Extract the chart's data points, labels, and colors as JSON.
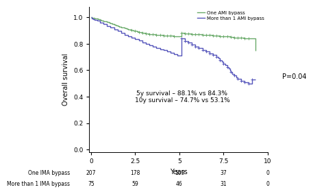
{
  "title": "",
  "ylabel": "Overall survival",
  "xlabel": "Years",
  "xlim": [
    -0.1,
    10
  ],
  "ylim": [
    -0.02,
    1.08
  ],
  "yticks": [
    0.0,
    0.2,
    0.4,
    0.6,
    0.8,
    1.0
  ],
  "xticks": [
    0,
    2.5,
    5,
    7.5,
    10
  ],
  "p_value": "P=0.04",
  "annotation": "5y survival – 88.1% vs 84.3%\n10y survival – 74.7% vs 53.1%",
  "legend_labels": [
    "One AMI bypass",
    "More than 1 AMI bypass"
  ],
  "color_one": "#6aaa6a",
  "color_more": "#5555bb",
  "at_risk_labels": [
    "One IMA bypass",
    "More than 1 IMA bypass"
  ],
  "at_risk_times": [
    0,
    2.5,
    5,
    7.5,
    10
  ],
  "at_risk_one": [
    207,
    178,
    109,
    37,
    0
  ],
  "at_risk_more": [
    75,
    59,
    46,
    31,
    0
  ],
  "one_t": [
    0.0,
    0.05,
    0.1,
    0.2,
    0.3,
    0.4,
    0.5,
    0.6,
    0.7,
    0.8,
    0.9,
    1.0,
    1.1,
    1.2,
    1.3,
    1.4,
    1.5,
    1.6,
    1.7,
    1.8,
    1.9,
    2.0,
    2.1,
    2.2,
    2.3,
    2.4,
    2.5,
    2.6,
    2.7,
    2.8,
    2.9,
    3.0,
    3.1,
    3.3,
    3.5,
    3.7,
    3.9,
    4.1,
    4.3,
    4.5,
    4.7,
    4.9,
    5.1,
    5.3,
    5.5,
    5.7,
    5.9,
    6.1,
    6.3,
    6.5,
    6.7,
    6.9,
    7.1,
    7.3,
    7.5,
    7.7,
    7.9,
    8.0,
    8.1,
    8.3,
    8.5,
    8.7,
    8.9,
    9.1,
    9.3
  ],
  "one_s": [
    1.0,
    0.998,
    0.996,
    0.993,
    0.99,
    0.988,
    0.982,
    0.977,
    0.972,
    0.968,
    0.963,
    0.958,
    0.953,
    0.948,
    0.943,
    0.938,
    0.934,
    0.93,
    0.926,
    0.922,
    0.918,
    0.914,
    0.91,
    0.906,
    0.902,
    0.898,
    0.895,
    0.892,
    0.889,
    0.886,
    0.883,
    0.88,
    0.877,
    0.874,
    0.871,
    0.868,
    0.865,
    0.863,
    0.861,
    0.859,
    0.857,
    0.855,
    0.88,
    0.878,
    0.876,
    0.874,
    0.872,
    0.87,
    0.868,
    0.866,
    0.864,
    0.862,
    0.86,
    0.858,
    0.856,
    0.854,
    0.852,
    0.85,
    0.848,
    0.846,
    0.844,
    0.842,
    0.84,
    0.838,
    0.747
  ],
  "more_t": [
    0.0,
    0.05,
    0.1,
    0.2,
    0.35,
    0.5,
    0.7,
    0.9,
    1.1,
    1.3,
    1.5,
    1.7,
    1.9,
    2.1,
    2.3,
    2.5,
    2.7,
    2.9,
    3.1,
    3.3,
    3.5,
    3.7,
    3.9,
    4.1,
    4.3,
    4.5,
    4.7,
    4.9,
    5.1,
    5.3,
    5.5,
    5.7,
    5.9,
    6.1,
    6.3,
    6.5,
    6.7,
    6.9,
    7.1,
    7.2,
    7.3,
    7.4,
    7.5,
    7.6,
    7.7,
    7.8,
    7.85,
    7.9,
    8.0,
    8.1,
    8.2,
    8.3,
    8.5,
    8.7,
    8.9,
    9.1,
    9.3
  ],
  "more_s": [
    1.0,
    0.993,
    0.987,
    0.98,
    0.973,
    0.96,
    0.947,
    0.934,
    0.921,
    0.908,
    0.895,
    0.882,
    0.869,
    0.856,
    0.845,
    0.834,
    0.823,
    0.812,
    0.801,
    0.79,
    0.78,
    0.77,
    0.76,
    0.75,
    0.74,
    0.73,
    0.72,
    0.71,
    0.843,
    0.82,
    0.807,
    0.794,
    0.781,
    0.768,
    0.755,
    0.742,
    0.729,
    0.716,
    0.703,
    0.69,
    0.677,
    0.664,
    0.651,
    0.638,
    0.625,
    0.612,
    0.599,
    0.586,
    0.573,
    0.56,
    0.547,
    0.534,
    0.52,
    0.51,
    0.5,
    0.531,
    0.531
  ],
  "censor_one_t": [
    2.3,
    2.5,
    2.7,
    2.9,
    3.1,
    3.3,
    3.5,
    3.7,
    3.9,
    4.1,
    4.3,
    4.5,
    4.7,
    5.1,
    5.3,
    5.5,
    5.7,
    5.9,
    6.1,
    6.3,
    6.5,
    6.7,
    6.9,
    7.1,
    7.3,
    7.5,
    7.7,
    7.9,
    8.1,
    8.3,
    8.5,
    8.7,
    8.9
  ],
  "censor_more_t": [
    5.1,
    5.3,
    5.5,
    5.7,
    5.9,
    6.1,
    6.3,
    6.5,
    6.7,
    6.9,
    7.1,
    7.3,
    7.5,
    7.7,
    7.9,
    8.1,
    8.3,
    8.5,
    8.7,
    8.9,
    9.1
  ]
}
